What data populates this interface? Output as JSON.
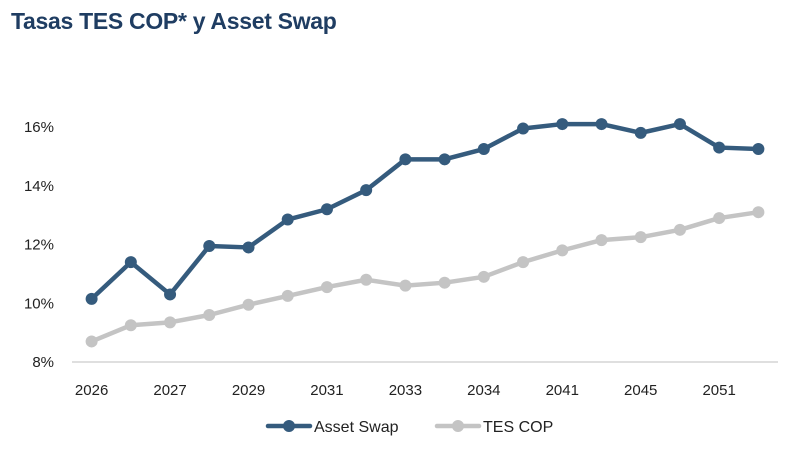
{
  "chart_data": {
    "type": "line",
    "title": "Tasas TES COP* y Asset Swap",
    "xlabel": "",
    "ylabel": "",
    "categories": [
      "2026",
      "",
      "2027",
      "",
      "2029",
      "",
      "2031",
      "",
      "2033",
      "",
      "2034",
      "",
      "2041",
      "",
      "2045",
      "",
      "2051",
      ""
    ],
    "series": [
      {
        "name": "Asset Swap",
        "color": "#355b7d",
        "values": [
          10.15,
          11.4,
          10.3,
          11.95,
          11.9,
          12.85,
          13.2,
          13.85,
          14.9,
          14.9,
          15.25,
          15.95,
          16.1,
          16.1,
          15.8,
          16.1,
          15.3,
          15.25
        ]
      },
      {
        "name": "TES COP",
        "color": "#c4c4c4",
        "values": [
          8.7,
          9.25,
          9.35,
          9.6,
          9.95,
          10.25,
          10.55,
          10.8,
          10.6,
          10.7,
          10.9,
          11.4,
          11.8,
          12.15,
          12.25,
          12.5,
          12.9,
          13.1
        ]
      }
    ],
    "ylim": [
      8,
      16
    ],
    "yticks": [
      "8%",
      "10%",
      "12%",
      "14%",
      "16%"
    ],
    "ytick_values": [
      8,
      10,
      12,
      14,
      16
    ],
    "grid": false,
    "legend_position": "bottom-center"
  }
}
